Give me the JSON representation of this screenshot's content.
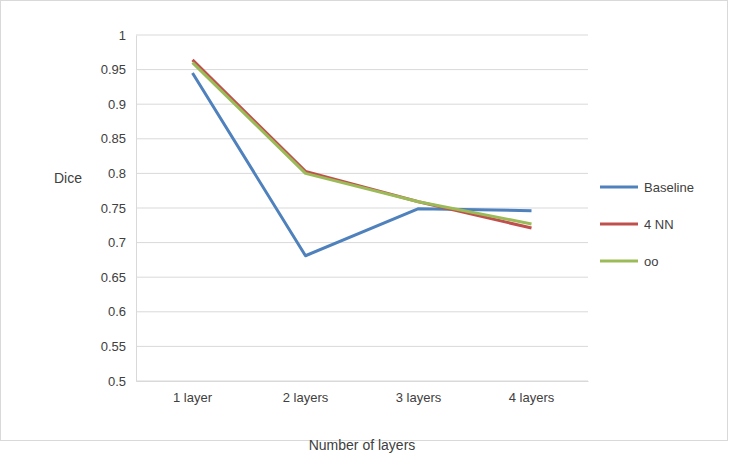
{
  "chart_data": {
    "type": "line",
    "x_label": "Number of layers",
    "y_label": "Dice",
    "categories": [
      "1 layer",
      "2 layers",
      "3 layers",
      "4 layers"
    ],
    "series": [
      {
        "name": "Baseline",
        "color": "#4f81bd",
        "values": [
          0.945,
          0.681,
          0.749,
          0.746
        ]
      },
      {
        "name": "4 NN",
        "color": "#c0504d",
        "values": [
          0.964,
          0.803,
          0.759,
          0.721
        ]
      },
      {
        "name": "oo",
        "color": "#9bbb59",
        "values": [
          0.96,
          0.8,
          0.759,
          0.727
        ]
      }
    ],
    "ylim": [
      0.5,
      1
    ],
    "yticks": [
      0.5,
      0.55,
      0.6,
      0.65,
      0.7,
      0.75,
      0.8,
      0.85,
      0.9,
      0.95,
      1
    ],
    "grid": true,
    "legend": "right"
  }
}
